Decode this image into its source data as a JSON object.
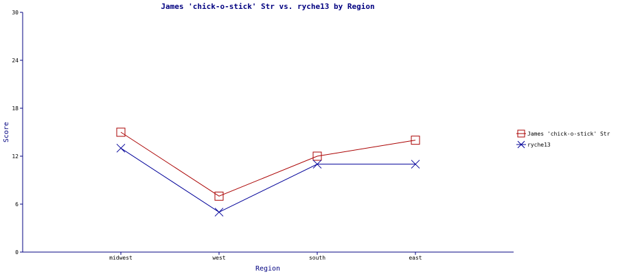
{
  "chart_data": {
    "type": "line",
    "title": "James 'chick-o-stick' Str vs. ryche13 by Region",
    "xlabel": "Region",
    "ylabel": "Score",
    "categories": [
      "midwest",
      "west",
      "south",
      "east"
    ],
    "ylim": [
      0,
      30
    ],
    "yticks": [
      0,
      6,
      12,
      18,
      24,
      30
    ],
    "grid": false,
    "legend_position": "right",
    "series": [
      {
        "name": "James 'chick-o-stick' Str",
        "values": [
          15,
          7,
          12,
          14
        ],
        "color": "#aa0000",
        "marker": "square"
      },
      {
        "name": "ryche13",
        "values": [
          13,
          5,
          11,
          11
        ],
        "color": "#000099",
        "marker": "x"
      }
    ]
  }
}
